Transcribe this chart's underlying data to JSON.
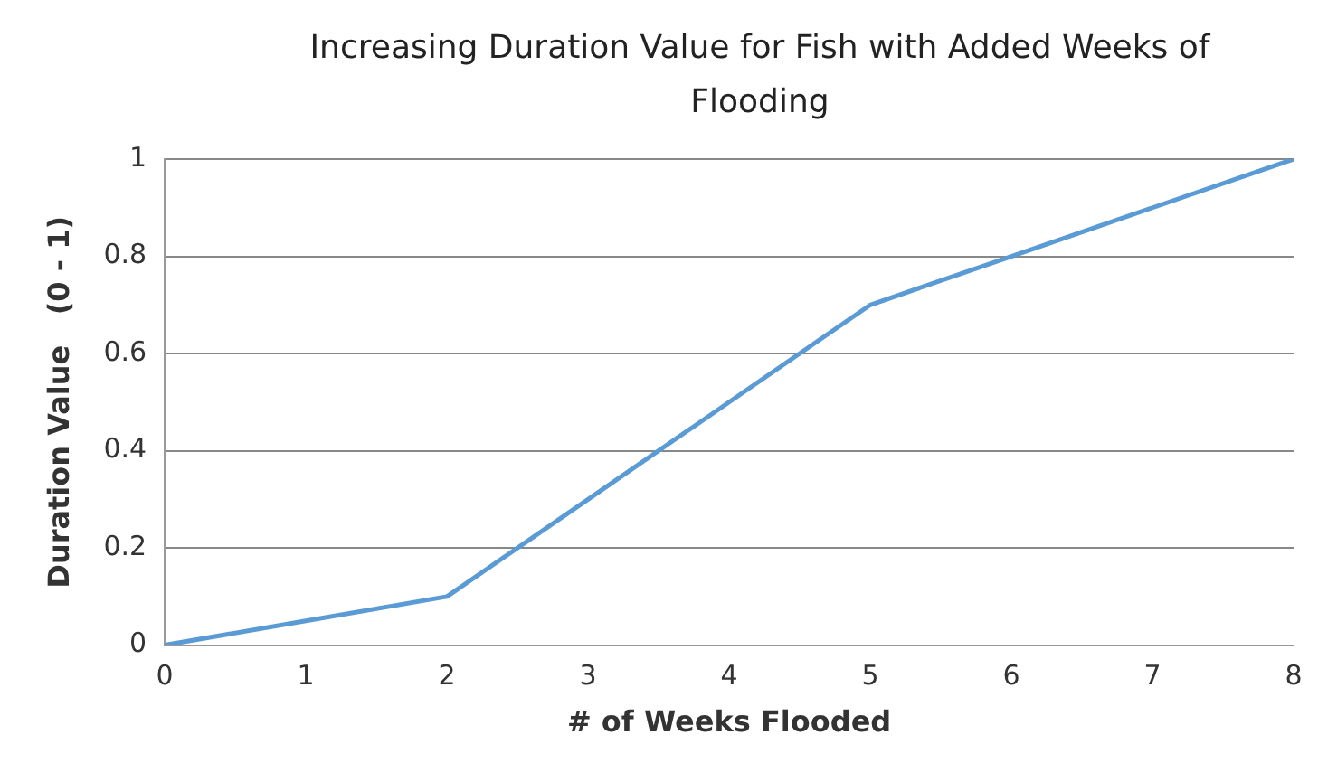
{
  "chart_data": {
    "type": "line",
    "title": "Increasing Duration Value for Fish with Added Weeks of Flooding",
    "xlabel": "# of Weeks Flooded",
    "ylabel": "Duration Value   (0 - 1)",
    "x": [
      0,
      1,
      2,
      3,
      4,
      5,
      6,
      7,
      8
    ],
    "series": [
      {
        "color": "#5b9bd5",
        "values": [
          0,
          0.05,
          0.1,
          0.3,
          0.5,
          0.7,
          0.8,
          0.9,
          1
        ]
      }
    ],
    "xlim": [
      0,
      8
    ],
    "xticks": [
      0,
      1,
      2,
      3,
      4,
      5,
      6,
      7,
      8
    ],
    "ylim": [
      0,
      1
    ],
    "yticks": [
      0,
      0.2,
      0.4,
      0.6,
      0.8,
      1
    ],
    "grid": "y",
    "marker": "none",
    "line_style": "solid",
    "legend": false
  }
}
